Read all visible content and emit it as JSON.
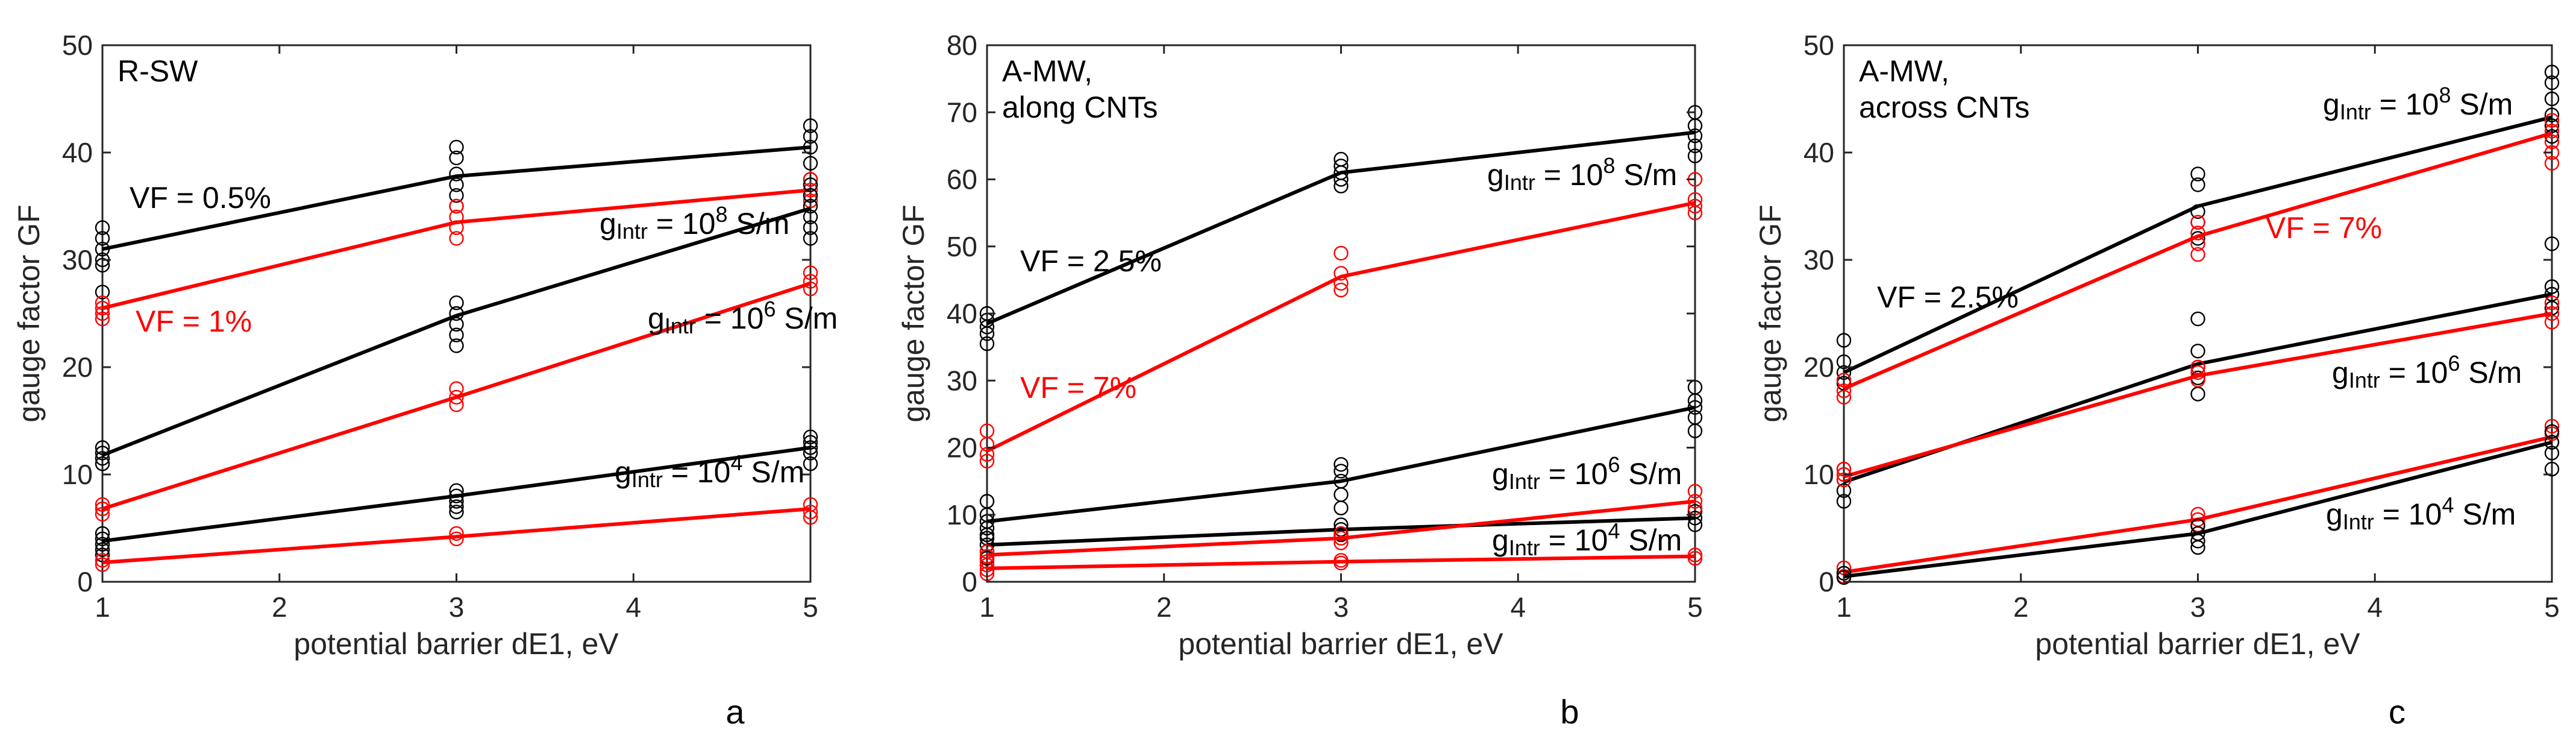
{
  "chart_data": [
    {
      "type": "line",
      "panel": "a",
      "title": "R-SW",
      "xlabel": "potential barrier dE1, eV",
      "ylabel": "gauge factor GF",
      "xlim": [
        1,
        5
      ],
      "ylim": [
        0,
        50
      ],
      "xticks": [
        1,
        2,
        3,
        4,
        5
      ],
      "yticks": [
        0,
        10,
        20,
        30,
        40,
        50
      ],
      "x": [
        1,
        3,
        5
      ],
      "series": [
        {
          "name": "VF = 0.5%, g=1e8",
          "color": "#000000",
          "values": [
            31,
            37.8,
            40.5
          ],
          "scatter": [
            [
              33,
              32,
              31,
              30,
              29.5,
              27
            ],
            [
              40.5,
              39.5,
              38,
              37,
              36,
              35
            ],
            [
              42.5,
              41.5,
              40.5,
              39,
              37.5,
              36
            ]
          ]
        },
        {
          "name": "VF = 1%, g=1e8",
          "color": "#ff0000",
          "values": [
            25.5,
            33.5,
            36.5
          ],
          "scatter": [
            [
              26,
              25.5,
              25,
              24.5
            ],
            [
              35,
              34,
              33,
              32
            ],
            [
              37.5,
              36.5,
              35.5
            ]
          ]
        },
        {
          "name": "VF = 0.5%, g=1e6",
          "color": "#000000",
          "values": [
            11.8,
            24.8,
            34.8
          ],
          "scatter": [
            [
              12.5,
              12,
              11.5,
              11
            ],
            [
              26,
              25,
              24,
              23,
              22
            ],
            [
              37,
              36,
              35,
              34,
              33,
              32
            ]
          ]
        },
        {
          "name": "VF = 1%, g=1e6",
          "color": "#ff0000",
          "values": [
            6.8,
            17.2,
            27.8
          ],
          "scatter": [
            [
              7.2,
              6.8,
              6.3
            ],
            [
              18,
              17.2,
              16.5
            ],
            [
              28.8,
              28,
              27.3
            ]
          ]
        },
        {
          "name": "VF = 0.5%, g=1e4",
          "color": "#000000",
          "values": [
            3.8,
            8,
            12.5
          ],
          "scatter": [
            [
              4.5,
              4,
              3.5,
              3,
              2.5
            ],
            [
              8.5,
              8,
              7.5,
              7,
              6.5
            ],
            [
              13.5,
              13,
              12.5,
              12,
              11
            ]
          ]
        },
        {
          "name": "VF = 1%, g=1e4",
          "color": "#ff0000",
          "values": [
            1.8,
            4.2,
            6.8
          ],
          "scatter": [
            [
              2,
              1.6
            ],
            [
              4.5,
              4
            ],
            [
              7.2,
              6.5,
              6
            ]
          ]
        }
      ],
      "annotations": {
        "vf_black": "VF = 0.5%",
        "vf_red": "VF = 1%",
        "g8": {
          "base": "g",
          "sub": "Intr",
          "rest": " = 10",
          "sup": "8",
          "unit": " S/m"
        },
        "g6": {
          "base": "g",
          "sub": "Intr",
          "rest": " = 10",
          "sup": "6",
          "unit": " S/m"
        },
        "g4": {
          "base": "g",
          "sub": "Intr",
          "rest": " = 10",
          "sup": "4",
          "unit": " S/m"
        }
      }
    },
    {
      "type": "line",
      "panel": "b",
      "title_lines": [
        "A-MW,",
        "along CNTs"
      ],
      "xlabel": "potential barrier dE1, eV",
      "ylabel": "gauge factor GF",
      "xlim": [
        1,
        5
      ],
      "ylim": [
        0,
        80
      ],
      "xticks": [
        1,
        2,
        3,
        4,
        5
      ],
      "yticks": [
        0,
        10,
        20,
        30,
        40,
        50,
        60,
        70,
        80
      ],
      "x": [
        1,
        3,
        5
      ],
      "series": [
        {
          "name": "VF = 2.5%, g=1e8",
          "color": "#000000",
          "values": [
            38.5,
            61,
            67
          ],
          "scatter": [
            [
              40,
              39,
              38,
              37,
              35.5
            ],
            [
              63,
              62,
              61,
              60,
              59
            ],
            [
              70,
              68,
              66.5,
              65,
              63.5
            ]
          ]
        },
        {
          "name": "VF = 7%, g=1e8",
          "color": "#ff0000",
          "values": [
            19.5,
            45.5,
            56.5
          ],
          "scatter": [
            [
              22.5,
              20.5,
              19,
              18
            ],
            [
              49,
              46,
              44.5,
              43.5
            ],
            [
              60,
              57,
              56,
              55
            ]
          ]
        },
        {
          "name": "VF = 2.5%, g=1e6",
          "color": "#000000",
          "values": [
            9,
            15,
            26
          ],
          "scatter": [
            [
              12,
              10,
              9,
              8,
              7
            ],
            [
              17.5,
              16.5,
              15,
              13,
              11
            ],
            [
              29,
              27,
              26,
              24.5,
              22.5
            ]
          ]
        },
        {
          "name": "VF = 2.5%, g=1e4",
          "color": "#000000",
          "values": [
            5.5,
            7.8,
            9.5
          ],
          "scatter": [
            [
              6.5,
              5.5,
              4.5,
              3.5
            ],
            [
              8.5,
              7.8,
              7
            ],
            [
              10.5,
              9.5,
              8.5
            ]
          ]
        },
        {
          "name": "VF = 7%, g=1e6",
          "color": "#ff0000",
          "values": [
            4,
            6.5,
            12
          ],
          "scatter": [
            [
              4.5,
              3.8,
              3
            ],
            [
              7.2,
              6.5,
              5.8
            ],
            [
              13.5,
              12,
              11
            ]
          ]
        },
        {
          "name": "VF = 7%, g=1e4",
          "color": "#ff0000",
          "values": [
            2,
            3,
            3.8
          ],
          "scatter": [
            [
              2.5,
              1.8,
              1.2
            ],
            [
              3.2,
              2.8
            ],
            [
              4,
              3.5
            ]
          ]
        }
      ],
      "annotations": {
        "vf_black": "VF = 2.5%",
        "vf_red": "VF = 7%",
        "g8": {
          "base": "g",
          "sub": "Intr",
          "rest": " = 10",
          "sup": "8",
          "unit": " S/m"
        },
        "g6": {
          "base": "g",
          "sub": "Intr",
          "rest": " = 10",
          "sup": "6",
          "unit": " S/m"
        },
        "g4": {
          "base": "g",
          "sub": "Intr",
          "rest": " = 10",
          "sup": "4",
          "unit": " S/m"
        }
      }
    },
    {
      "type": "line",
      "panel": "c",
      "title_lines": [
        "A-MW,",
        "across CNTs"
      ],
      "xlabel": "potential barrier dE1, eV",
      "ylabel": "gauge factor GF",
      "xlim": [
        1,
        5
      ],
      "ylim": [
        0,
        50
      ],
      "xticks": [
        1,
        2,
        3,
        4,
        5
      ],
      "yticks": [
        0,
        10,
        20,
        30,
        40,
        50
      ],
      "x": [
        1,
        3,
        5
      ],
      "series": [
        {
          "name": "VF = 2.5%, g=1e8",
          "color": "#000000",
          "values": [
            19.5,
            35,
            43.3
          ],
          "scatter": [
            [
              22.5,
              20.5,
              19.5,
              18.5
            ],
            [
              38,
              37,
              34.5,
              33.5,
              32
            ],
            [
              47.5,
              46.5,
              45,
              43.5,
              42.5,
              41.5
            ]
          ]
        },
        {
          "name": "VF = 7%, g=1e8",
          "color": "#ff0000",
          "values": [
            18,
            32.2,
            41.8
          ],
          "scatter": [
            [
              18.8,
              17.8,
              17.2
            ],
            [
              33.5,
              32.5,
              31.5,
              30.5
            ],
            [
              43,
              42,
              41,
              40,
              39
            ]
          ]
        },
        {
          "name": "VF = 2.5%, g=1e6",
          "color": "#000000",
          "values": [
            9.3,
            20.3,
            26.8
          ],
          "scatter": [
            [
              10.5,
              9.5,
              8.5,
              7.5
            ],
            [
              24.5,
              21.5,
              20,
              19,
              17.5
            ],
            [
              31.5,
              27.5,
              26.8,
              25.5
            ]
          ]
        },
        {
          "name": "VF = 7%, g=1e6",
          "color": "#ff0000",
          "values": [
            9.8,
            19.2,
            25
          ],
          "scatter": [
            [
              10.5,
              10,
              9.5
            ],
            [
              20,
              19.5,
              18.8
            ],
            [
              26,
              25,
              24.2
            ]
          ]
        },
        {
          "name": "VF = 7%, g=1e4",
          "color": "#ff0000",
          "values": [
            0.9,
            5.8,
            13.5
          ],
          "scatter": [
            [
              1.3,
              0.8,
              0.5
            ],
            [
              6.3,
              5.8,
              5.3
            ],
            [
              14.5,
              13.8,
              13
            ]
          ]
        },
        {
          "name": "VF = 2.5%, g=1e4",
          "color": "#000000",
          "values": [
            0.5,
            4.5,
            13
          ],
          "scatter": [
            [
              0.8,
              0.4
            ],
            [
              5.2,
              4.5,
              3.8,
              3.2
            ],
            [
              14,
              13,
              12,
              10.5
            ]
          ]
        }
      ],
      "annotations": {
        "vf_black": "VF = 2.5%",
        "vf_red": "VF = 7%",
        "g8": {
          "base": "g",
          "sub": "Intr",
          "rest": " = 10",
          "sup": "8",
          "unit": " S/m"
        },
        "g6": {
          "base": "g",
          "sub": "Intr",
          "rest": " = 10",
          "sup": "6",
          "unit": " S/m"
        },
        "g4": {
          "base": "g",
          "sub": "Intr",
          "rest": " = 10",
          "sup": "4",
          "unit": " S/m"
        }
      }
    }
  ]
}
